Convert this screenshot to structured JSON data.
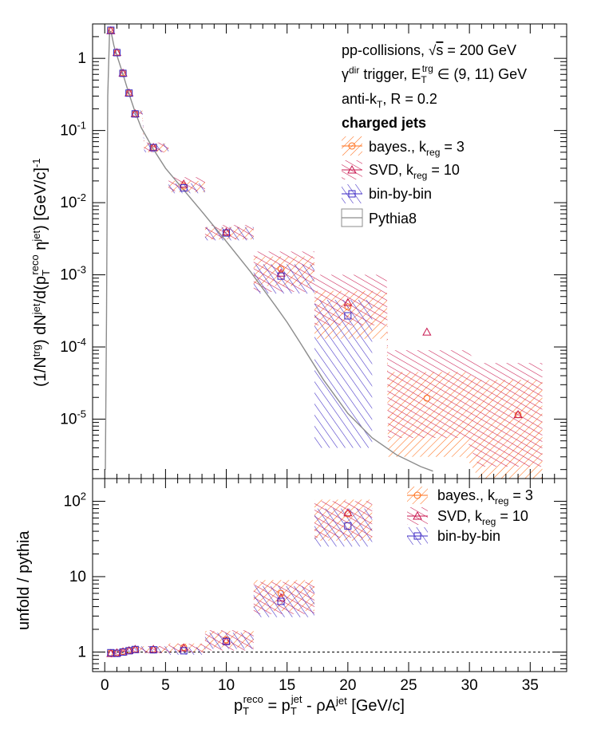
{
  "chart_data": [
    {
      "panel": "top",
      "type": "scatter",
      "ylabel": "(1/N^trg) dN^jet/d(p_T^reco η^jet) [GeV/c]^-1",
      "yscale": "log",
      "xlim": [
        -1,
        38
      ],
      "ylim": [
        1.5e-06,
        3.0
      ],
      "annotations": [
        "pp-collisions, √s = 200 GeV",
        "γ^dir trigger, E_T^trg ∈ (9, 11) GeV",
        "anti-k_T, R = 0.2",
        "charged jets"
      ],
      "legend": [
        "bayes., k_reg = 3",
        "SVD, k_reg = 10",
        "bin-by-bin",
        "Pythia8"
      ],
      "legend_position": "top-right",
      "series": [
        {
          "name": "bayes., k_reg = 3",
          "color": "#ff6f1a",
          "marker": "circle",
          "x": [
            0.5,
            1.0,
            1.5,
            2.0,
            2.5,
            4.0,
            6.5,
            10.0,
            14.5,
            20.0,
            26.5,
            34.0
          ],
          "y": [
            2.45,
            1.2,
            0.63,
            0.33,
            0.17,
            0.058,
            0.017,
            0.0038,
            0.0012,
            0.00036,
            1.95e-05,
            1.15e-05
          ],
          "band_lo": [
            2.2,
            1.08,
            0.56,
            0.29,
            0.15,
            0.05,
            0.014,
            0.0031,
            0.0007,
            0.00013,
            3e-06,
            1.5e-06
          ],
          "band_hi": [
            2.7,
            1.32,
            0.7,
            0.37,
            0.19,
            0.066,
            0.02,
            0.0046,
            0.0018,
            0.0006,
            4.5e-05,
            3.5e-05
          ]
        },
        {
          "name": "SVD, k_reg = 10",
          "color": "#c8174f",
          "marker": "triangle",
          "x": [
            0.5,
            1.0,
            1.5,
            2.0,
            2.5,
            4.0,
            6.5,
            10.0,
            14.5,
            20.0,
            26.5,
            34.0
          ],
          "y": [
            2.4,
            1.2,
            0.62,
            0.33,
            0.17,
            0.058,
            0.018,
            0.0039,
            0.00105,
            0.00041,
            0.00016,
            1.15e-05
          ],
          "band_lo": [
            2.15,
            1.07,
            0.55,
            0.29,
            0.15,
            0.05,
            0.0145,
            0.0031,
            0.00058,
            0.0002,
            5.5e-06,
            2.2e-06
          ],
          "band_hi": [
            2.7,
            1.35,
            0.7,
            0.37,
            0.19,
            0.068,
            0.0225,
            0.0049,
            0.0021,
            0.001,
            9e-05,
            6e-05
          ]
        },
        {
          "name": "bin-by-bin",
          "color": "#3b28c4",
          "marker": "square",
          "x": [
            0.5,
            1.0,
            1.5,
            2.0,
            2.5,
            4.0,
            6.5,
            10.0,
            14.5,
            20.0
          ],
          "y": [
            2.45,
            1.2,
            0.62,
            0.33,
            0.17,
            0.058,
            0.016,
            0.0038,
            0.00096,
            0.00027
          ],
          "band_lo": [
            2.2,
            1.06,
            0.55,
            0.29,
            0.15,
            0.05,
            0.0135,
            0.003,
            0.00055,
            4e-06
          ],
          "band_hi": [
            2.7,
            1.35,
            0.7,
            0.37,
            0.19,
            0.066,
            0.0185,
            0.0046,
            0.0014,
            0.00045
          ]
        },
        {
          "name": "Pythia8",
          "color": "#8c8c8c",
          "marker": "line",
          "x": [
            0.05,
            0.15,
            0.25,
            0.4,
            0.55,
            0.75,
            1.0,
            1.5,
            2.0,
            2.5,
            3.0,
            4.0,
            5.0,
            6.5,
            8.0,
            10.0,
            12.0,
            14.0,
            15.0,
            16.0,
            18.0,
            20.0,
            22.0,
            24.0,
            26.0,
            27.0
          ],
          "y": [
            2e-06,
            0.0003,
            0.3,
            2.4,
            2.2,
            1.5,
            1.1,
            0.6,
            0.32,
            0.18,
            0.11,
            0.055,
            0.03,
            0.015,
            0.0075,
            0.0029,
            0.0011,
            0.00038,
            0.00022,
            0.00012,
            3.5e-05,
            1.2e-05,
            5.5e-06,
            3.2e-06,
            2.2e-06,
            1.9e-06
          ]
        }
      ]
    },
    {
      "panel": "bottom",
      "type": "scatter",
      "xlabel": "p_T^reco = p_T^jet - ρA^jet [GeV/c]",
      "ylabel": "unfold / pythia",
      "yscale": "log",
      "xlim": [
        -1,
        38
      ],
      "ylim": [
        0.55,
        200
      ],
      "reference_line": 1,
      "xticks": [
        0,
        5,
        10,
        15,
        20,
        25,
        30,
        35
      ],
      "legend": [
        "bayes., k_reg = 3",
        "SVD, k_reg = 10",
        "bin-by-bin"
      ],
      "legend_position": "top-right",
      "series": [
        {
          "name": "bayes., k_reg = 3",
          "color": "#ff6f1a",
          "marker": "circle",
          "x": [
            0.5,
            1.0,
            1.5,
            2.0,
            2.5,
            4.0,
            6.5,
            10.0,
            14.5,
            20.0
          ],
          "y": [
            0.97,
            0.98,
            1.02,
            1.05,
            1.08,
            1.07,
            1.15,
            1.45,
            6.0,
            68
          ],
          "band_lo": [
            0.87,
            0.88,
            0.92,
            0.95,
            0.97,
            0.96,
            1.0,
            1.15,
            3.5,
            30
          ],
          "band_hi": [
            1.07,
            1.08,
            1.12,
            1.15,
            1.19,
            1.19,
            1.3,
            1.9,
            9.0,
            105
          ]
        },
        {
          "name": "SVD, k_reg = 10",
          "color": "#c8174f",
          "marker": "triangle",
          "x": [
            0.5,
            1.0,
            1.5,
            2.0,
            2.5,
            4.0,
            6.5,
            10.0,
            14.5,
            20.0
          ],
          "y": [
            0.95,
            0.97,
            1.0,
            1.04,
            1.08,
            1.08,
            1.13,
            1.4,
            5.2,
            70
          ],
          "band_lo": [
            0.85,
            0.87,
            0.9,
            0.94,
            0.97,
            0.97,
            0.98,
            1.05,
            3.2,
            33
          ],
          "band_hi": [
            1.05,
            1.07,
            1.1,
            1.14,
            1.19,
            1.2,
            1.28,
            1.95,
            8.5,
            100
          ]
        },
        {
          "name": "bin-by-bin",
          "color": "#3b28c4",
          "marker": "square",
          "x": [
            0.5,
            1.0,
            1.5,
            2.0,
            2.5,
            4.0,
            6.5,
            10.0,
            14.5,
            20.0
          ],
          "y": [
            0.98,
            0.96,
            1.0,
            1.04,
            1.08,
            1.07,
            1.04,
            1.38,
            4.7,
            47
          ],
          "band_lo": [
            0.88,
            0.86,
            0.9,
            0.94,
            0.97,
            0.96,
            0.92,
            1.1,
            2.9,
            25
          ],
          "band_hi": [
            1.08,
            1.06,
            1.1,
            1.14,
            1.19,
            1.19,
            1.16,
            1.8,
            7.5,
            80
          ]
        }
      ]
    }
  ]
}
